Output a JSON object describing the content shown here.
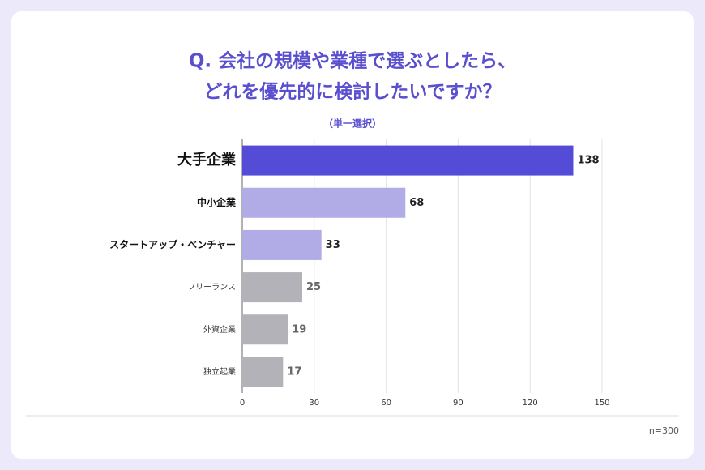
{
  "chart_data": {
    "type": "bar",
    "orientation": "horizontal",
    "title": [
      "Q. 会社の規模や業種で選ぶとしたら、",
      "どれを優先的に検討したいですか？"
    ],
    "subtitle": "（単一選択）",
    "categories": [
      "大手企業",
      "中小企業",
      "スタートアップ・ベンチャー",
      "フリーランス",
      "外資企業",
      "独立起業"
    ],
    "values": [
      138,
      68,
      33,
      25,
      19,
      17
    ],
    "colors": [
      "#544bd6",
      "#b1ace6",
      "#b1ace6",
      "#b4b2b9",
      "#b4b2b9",
      "#b4b2b9"
    ],
    "xlim": [
      0,
      150
    ],
    "xticks": [
      0,
      30,
      60,
      90,
      120,
      150
    ],
    "grid": true,
    "note": "n=300"
  }
}
